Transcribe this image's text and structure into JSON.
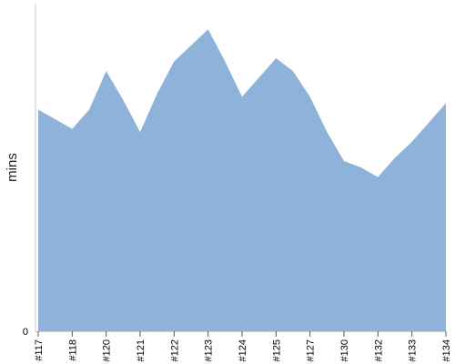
{
  "chart_data": {
    "type": "area",
    "title": "",
    "xlabel": "",
    "ylabel": "mins",
    "categories": [
      "#117",
      "",
      "#118",
      "",
      "#120",
      "",
      "#121",
      "",
      "#122",
      "",
      "#123",
      "",
      "#124",
      "",
      "#125",
      "",
      "#127",
      "",
      "#130",
      "",
      "#132",
      "",
      "#133",
      "",
      "#134"
    ],
    "series": [
      {
        "values": [
          6.9,
          6.6,
          6.3,
          6.9,
          8.1,
          7.2,
          6.2,
          7.4,
          8.4,
          8.9,
          9.4,
          8.4,
          7.3,
          7.9,
          8.5,
          8.1,
          7.3,
          6.2,
          5.3,
          5.1,
          4.8,
          5.4,
          5.9,
          6.5,
          7.1
        ]
      }
    ],
    "ylim": [
      0,
      10.2
    ],
    "yticks": [
      "0"
    ],
    "grid": false,
    "legend": "none",
    "colors": {
      "area": "#8fb2db",
      "axis": "#cccccc",
      "tick": "#555555"
    }
  }
}
